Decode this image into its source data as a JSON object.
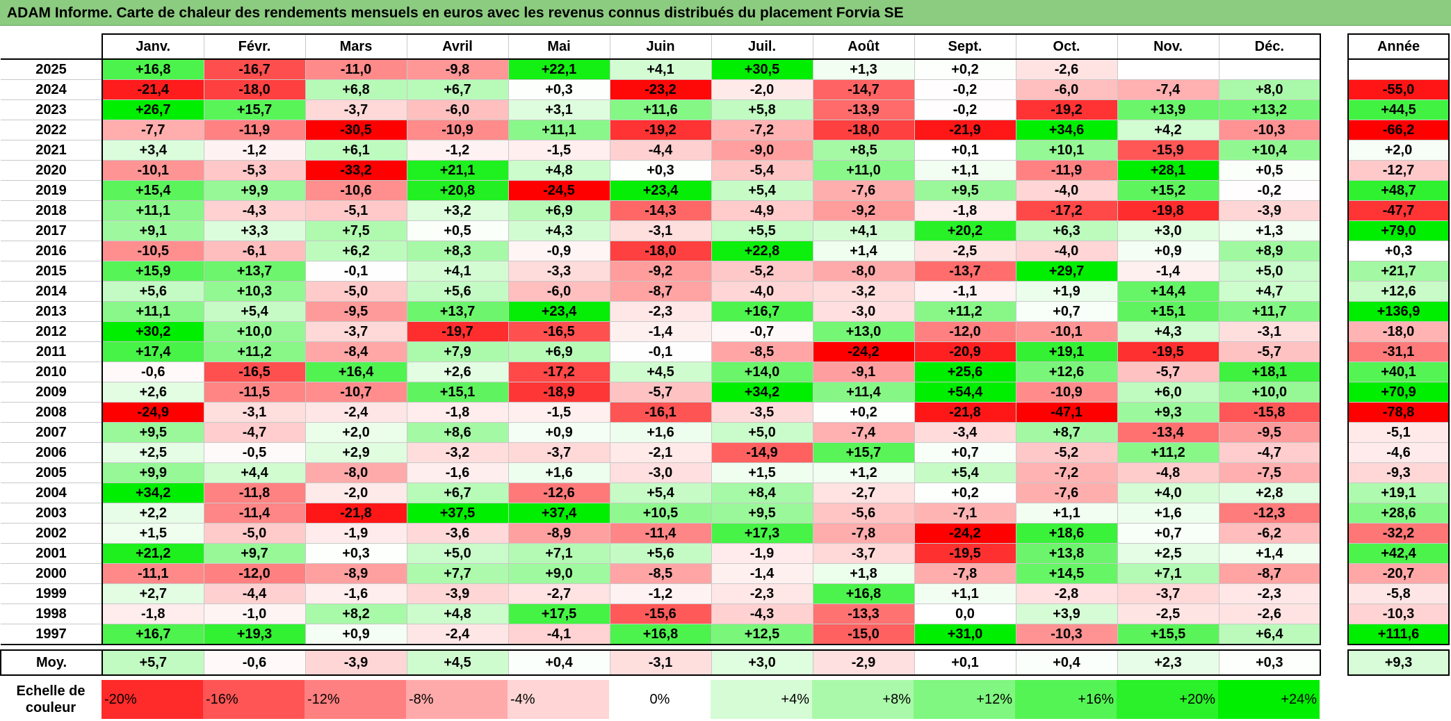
{
  "title": "ADAM Informe. Carte de chaleur des rendements mensuels en euros avec les revenus connus distribués du placement Forvia SE",
  "chart_data": {
    "type": "heatmap",
    "columns": [
      "Janv.",
      "Févr.",
      "Mars",
      "Avril",
      "Mai",
      "Juin",
      "Juil.",
      "Août",
      "Sept.",
      "Oct.",
      "Nov.",
      "Déc."
    ],
    "annual_header": "Année",
    "rows": [
      {
        "year": "2025",
        "values": [
          "+16,8",
          "-16,7",
          "-11,0",
          "-9,8",
          "+22,1",
          "+4,1",
          "+30,5",
          "+1,3",
          "+0,2",
          "-2,6",
          "",
          ""
        ],
        "annual": ""
      },
      {
        "year": "2024",
        "values": [
          "-21,4",
          "-18,0",
          "+6,8",
          "+6,7",
          "+0,3",
          "-23,2",
          "-2,0",
          "-14,7",
          "-0,2",
          "-6,0",
          "-7,4",
          "+8,0"
        ],
        "annual": "-55,0"
      },
      {
        "year": "2023",
        "values": [
          "+26,7",
          "+15,7",
          "-3,7",
          "-6,0",
          "+3,1",
          "+11,6",
          "+5,8",
          "-13,9",
          "-0,2",
          "-19,2",
          "+13,9",
          "+13,2"
        ],
        "annual": "+44,5"
      },
      {
        "year": "2022",
        "values": [
          "-7,7",
          "-11,9",
          "-30,5",
          "-10,9",
          "+11,1",
          "-19,2",
          "-7,2",
          "-18,0",
          "-21,9",
          "+34,6",
          "+4,2",
          "-10,3"
        ],
        "annual": "-66,2"
      },
      {
        "year": "2021",
        "values": [
          "+3,4",
          "-1,2",
          "+6,1",
          "-1,2",
          "-1,5",
          "-4,4",
          "-9,0",
          "+8,5",
          "+0,1",
          "+10,1",
          "-15,9",
          "+10,4"
        ],
        "annual": "+2,0"
      },
      {
        "year": "2020",
        "values": [
          "-10,1",
          "-5,3",
          "-33,2",
          "+21,1",
          "+4,8",
          "+0,3",
          "-5,4",
          "+11,0",
          "+1,1",
          "-11,9",
          "+28,1",
          "+0,5"
        ],
        "annual": "-12,7"
      },
      {
        "year": "2019",
        "values": [
          "+15,4",
          "+9,9",
          "-10,6",
          "+20,8",
          "-24,5",
          "+23,4",
          "+5,4",
          "-7,6",
          "+9,5",
          "-4,0",
          "+15,2",
          "-0,2"
        ],
        "annual": "+48,7"
      },
      {
        "year": "2018",
        "values": [
          "+11,1",
          "-4,3",
          "-5,1",
          "+3,2",
          "+6,9",
          "-14,3",
          "-4,9",
          "-9,2",
          "-1,8",
          "-17,2",
          "-19,8",
          "-3,9"
        ],
        "annual": "-47,7"
      },
      {
        "year": "2017",
        "values": [
          "+9,1",
          "+3,3",
          "+7,5",
          "+0,5",
          "+4,3",
          "-3,1",
          "+5,5",
          "+4,1",
          "+20,2",
          "+6,3",
          "+3,0",
          "+1,3"
        ],
        "annual": "+79,0"
      },
      {
        "year": "2016",
        "values": [
          "-10,5",
          "-6,1",
          "+6,2",
          "+8,3",
          "-0,9",
          "-18,0",
          "+22,8",
          "+1,4",
          "-2,5",
          "-4,0",
          "+0,9",
          "+8,9"
        ],
        "annual": "+0,3"
      },
      {
        "year": "2015",
        "values": [
          "+15,9",
          "+13,7",
          "-0,1",
          "+4,1",
          "-3,3",
          "-9,2",
          "-5,2",
          "-8,0",
          "-13,7",
          "+29,7",
          "-1,4",
          "+5,0"
        ],
        "annual": "+21,7"
      },
      {
        "year": "2014",
        "values": [
          "+5,6",
          "+10,3",
          "-5,0",
          "+5,6",
          "-6,0",
          "-8,7",
          "-4,0",
          "-3,2",
          "-1,1",
          "+1,9",
          "+14,4",
          "+4,7"
        ],
        "annual": "+12,6"
      },
      {
        "year": "2013",
        "values": [
          "+11,1",
          "+5,4",
          "-9,5",
          "+13,7",
          "+23,4",
          "-2,3",
          "+16,7",
          "-3,0",
          "+11,2",
          "+0,7",
          "+15,1",
          "+11,7"
        ],
        "annual": "+136,9"
      },
      {
        "year": "2012",
        "values": [
          "+30,2",
          "+10,0",
          "-3,7",
          "-19,7",
          "-16,5",
          "-1,4",
          "-0,7",
          "+13,0",
          "-12,0",
          "-10,1",
          "+4,3",
          "-3,1"
        ],
        "annual": "-18,0"
      },
      {
        "year": "2011",
        "values": [
          "+17,4",
          "+11,2",
          "-8,4",
          "+7,9",
          "+6,9",
          "-0,1",
          "-8,5",
          "-24,2",
          "-20,9",
          "+19,1",
          "-19,5",
          "-5,7"
        ],
        "annual": "-31,1"
      },
      {
        "year": "2010",
        "values": [
          "-0,6",
          "-16,5",
          "+16,4",
          "+2,6",
          "-17,2",
          "+4,5",
          "+14,0",
          "-9,1",
          "+25,6",
          "+12,6",
          "-5,7",
          "+18,1"
        ],
        "annual": "+40,1"
      },
      {
        "year": "2009",
        "values": [
          "+2,6",
          "-11,5",
          "-10,7",
          "+15,1",
          "-18,9",
          "-5,7",
          "+34,2",
          "+11,4",
          "+54,4",
          "-10,9",
          "+6,0",
          "+10,0"
        ],
        "annual": "+70,9"
      },
      {
        "year": "2008",
        "values": [
          "-24,9",
          "-3,1",
          "-2,4",
          "-1,8",
          "-1,5",
          "-16,1",
          "-3,5",
          "+0,2",
          "-21,8",
          "-47,1",
          "+9,3",
          "-15,8"
        ],
        "annual": "-78,8"
      },
      {
        "year": "2007",
        "values": [
          "+9,5",
          "-4,7",
          "+2,0",
          "+8,6",
          "+0,9",
          "+1,6",
          "+5,0",
          "-7,4",
          "-3,4",
          "+8,7",
          "-13,4",
          "-9,5"
        ],
        "annual": "-5,1"
      },
      {
        "year": "2006",
        "values": [
          "+2,5",
          "-0,5",
          "+2,9",
          "-3,2",
          "-3,7",
          "-2,1",
          "-14,9",
          "+15,7",
          "+0,7",
          "-5,2",
          "+11,2",
          "-4,7"
        ],
        "annual": "-4,6"
      },
      {
        "year": "2005",
        "values": [
          "+9,9",
          "+4,4",
          "-8,0",
          "-1,6",
          "+1,6",
          "-3,0",
          "+1,5",
          "+1,2",
          "+5,4",
          "-7,2",
          "-4,8",
          "-7,5"
        ],
        "annual": "-9,3"
      },
      {
        "year": "2004",
        "values": [
          "+34,2",
          "-11,8",
          "-2,0",
          "+6,7",
          "-12,6",
          "+5,4",
          "+8,4",
          "-2,7",
          "+0,2",
          "-7,6",
          "+4,0",
          "+2,8"
        ],
        "annual": "+19,1"
      },
      {
        "year": "2003",
        "values": [
          "+2,2",
          "-11,4",
          "-21,8",
          "+37,5",
          "+37,4",
          "+10,5",
          "+9,5",
          "-5,6",
          "-7,1",
          "+1,1",
          "+1,6",
          "-12,3"
        ],
        "annual": "+28,6"
      },
      {
        "year": "2002",
        "values": [
          "+1,5",
          "-5,0",
          "-1,9",
          "-3,6",
          "-8,9",
          "-11,4",
          "+17,3",
          "-7,8",
          "-24,2",
          "+18,6",
          "+0,7",
          "-6,2"
        ],
        "annual": "-32,2"
      },
      {
        "year": "2001",
        "values": [
          "+21,2",
          "+9,7",
          "+0,3",
          "+5,0",
          "+7,1",
          "+5,6",
          "-1,9",
          "-3,7",
          "-19,5",
          "+13,8",
          "+2,5",
          "+1,4"
        ],
        "annual": "+42,4"
      },
      {
        "year": "2000",
        "values": [
          "-11,1",
          "-12,0",
          "-8,9",
          "+7,7",
          "+9,0",
          "-8,5",
          "-1,4",
          "+1,8",
          "-7,8",
          "+14,5",
          "+7,1",
          "-8,7"
        ],
        "annual": "-20,7"
      },
      {
        "year": "1999",
        "values": [
          "+2,7",
          "-4,4",
          "-1,6",
          "-3,9",
          "-2,7",
          "-1,2",
          "-2,3",
          "+16,8",
          "+1,1",
          "-2,8",
          "-3,7",
          "-2,3"
        ],
        "annual": "-5,8"
      },
      {
        "year": "1998",
        "values": [
          "-1,8",
          "-1,0",
          "+8,2",
          "+4,8",
          "+17,5",
          "-15,6",
          "-4,3",
          "-13,3",
          "0,0",
          "+3,9",
          "-2,5",
          "-2,6"
        ],
        "annual": "-10,3"
      },
      {
        "year": "1997",
        "values": [
          "+16,7",
          "+19,3",
          "+0,9",
          "-2,4",
          "-4,1",
          "+16,8",
          "+12,5",
          "-15,0",
          "+31,0",
          "-10,3",
          "+15,5",
          "+6,4"
        ],
        "annual": "+111,6"
      }
    ],
    "average": {
      "label": "Moy.",
      "values": [
        "+5,7",
        "-0,6",
        "-3,9",
        "+4,5",
        "+0,4",
        "-3,1",
        "+3,0",
        "-2,9",
        "+0,1",
        "+0,4",
        "+2,3",
        "+0,3"
      ],
      "annual": "+9,3"
    },
    "scale": {
      "label": "Echelle de couleur",
      "steps": [
        {
          "text": "-20%",
          "value": -20,
          "align": "left"
        },
        {
          "text": "-16%",
          "value": -16,
          "align": "left"
        },
        {
          "text": "-12%",
          "value": -12,
          "align": "left"
        },
        {
          "text": "-8%",
          "value": -8,
          "align": "left"
        },
        {
          "text": "-4%",
          "value": -4,
          "align": "left"
        },
        {
          "text": "0%",
          "value": 0,
          "align": "center"
        },
        {
          "text": "+4%",
          "value": 4,
          "align": "right"
        },
        {
          "text": "+8%",
          "value": 8,
          "align": "right"
        },
        {
          "text": "+12%",
          "value": 12,
          "align": "right"
        },
        {
          "text": "+16%",
          "value": 16,
          "align": "right"
        },
        {
          "text": "+20%",
          "value": 20,
          "align": "right"
        },
        {
          "text": "+24%",
          "value": 24,
          "align": "right"
        }
      ]
    },
    "colors": {
      "negative_max": "#ff0000",
      "neutral": "#ffffff",
      "positive_max": "#00ee00"
    },
    "monthly_color_range": [
      -24,
      24
    ],
    "annual_color_range": [
      -60,
      60
    ]
  }
}
